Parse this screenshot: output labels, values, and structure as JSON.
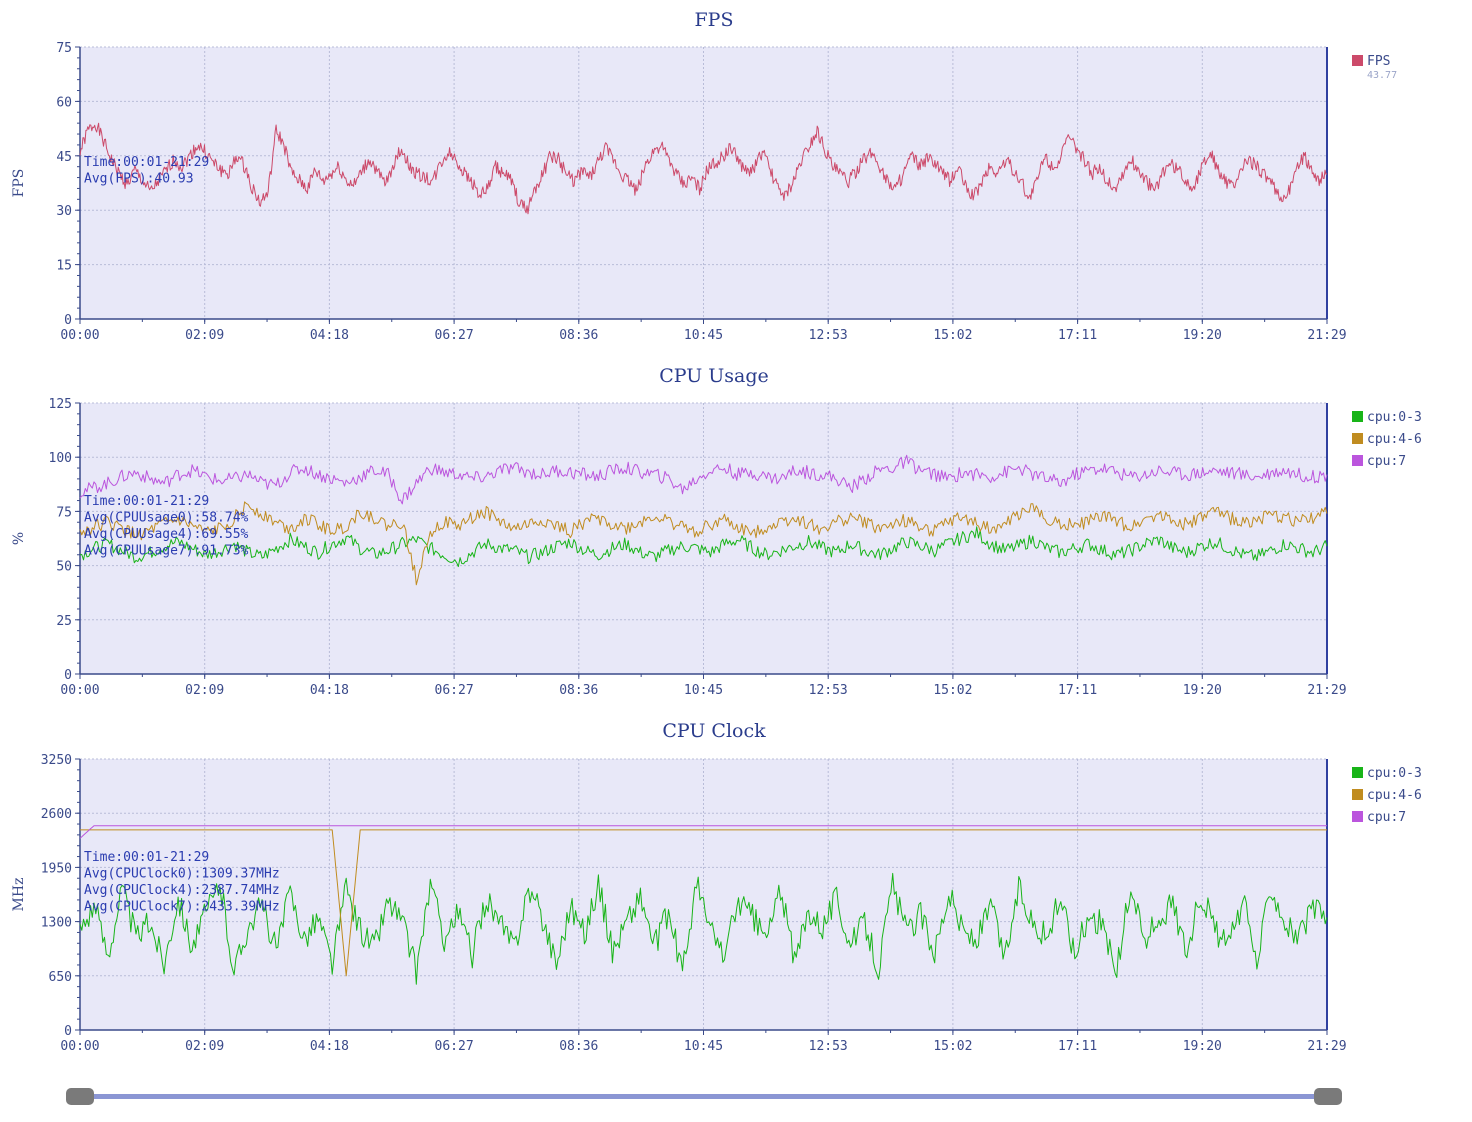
{
  "x_ticks": [
    "00:00",
    "02:09",
    "04:18",
    "06:27",
    "08:36",
    "10:45",
    "12:53",
    "15:02",
    "17:11",
    "19:20",
    "21:29"
  ],
  "chart_data": [
    {
      "type": "line",
      "title": "FPS",
      "ylabel": "FPS",
      "ylim": [
        0,
        75
      ],
      "yticks": [
        "0",
        "15",
        "30",
        "45",
        "60",
        "75"
      ],
      "x_range": [
        "00:00",
        "21:29"
      ],
      "grid": true,
      "legend_position": "right",
      "legend": [
        {
          "name": "FPS",
          "color": "#cc4a6a",
          "value": "43.77"
        }
      ],
      "annotation": [
        "Time:00:01-21:29",
        "Avg(FPS):40.93"
      ],
      "series": [
        {
          "name": "FPS",
          "color": "#cc4a6a",
          "values": [
            46,
            52,
            54,
            49,
            44,
            40,
            37,
            41,
            38,
            35,
            38,
            41,
            44,
            42,
            45,
            48,
            46,
            43,
            41,
            40,
            45,
            42,
            36,
            32,
            35,
            52,
            48,
            40,
            38,
            36,
            41,
            38,
            40,
            42,
            38,
            37,
            41,
            44,
            40,
            37,
            43,
            47,
            42,
            40,
            39,
            38,
            43,
            46,
            44,
            40,
            38,
            34,
            36,
            42,
            40,
            38,
            32,
            30,
            36,
            40,
            45,
            44,
            40,
            38,
            41,
            39,
            43,
            47,
            44,
            40,
            38,
            35,
            42,
            46,
            48,
            44,
            40,
            37,
            39,
            36,
            41,
            43,
            45,
            47,
            44,
            40,
            42,
            46,
            41,
            36,
            34,
            38,
            44,
            48,
            52,
            47,
            42,
            40,
            38,
            41,
            44,
            46,
            42,
            38,
            36,
            40,
            45,
            42,
            44,
            43,
            40,
            38,
            42,
            36,
            34,
            38,
            42,
            40,
            44,
            41,
            38,
            33,
            38,
            45,
            42,
            44,
            50,
            47,
            44,
            40,
            42,
            38,
            36,
            40,
            44,
            41,
            38,
            35,
            40,
            43,
            41,
            38,
            36,
            42,
            46,
            42,
            38,
            36,
            41,
            44,
            42,
            40,
            37,
            33,
            35,
            40,
            45,
            42,
            38,
            40
          ]
        }
      ]
    },
    {
      "type": "line",
      "title": "CPU Usage",
      "ylabel": "%",
      "ylim": [
        0,
        125
      ],
      "yticks": [
        "0",
        "25",
        "50",
        "75",
        "100",
        "125"
      ],
      "x_range": [
        "00:00",
        "21:29"
      ],
      "grid": true,
      "legend_position": "right",
      "legend": [
        {
          "name": "cpu:0-3",
          "color": "#18b418"
        },
        {
          "name": "cpu:4-6",
          "color": "#c08c20"
        },
        {
          "name": "cpu:7",
          "color": "#bb55dd"
        }
      ],
      "annotation": [
        "Time:00:01-21:29",
        "Avg(CPUUsage0):58.74%",
        "Avg(CPUUsage4):69.55%",
        "Avg(CPUUsage7):91.73%"
      ],
      "series": [
        {
          "name": "cpu:0-3",
          "color": "#18b418",
          "values": [
            55,
            58,
            60,
            57,
            54,
            56,
            59,
            61,
            58,
            55,
            57,
            60,
            56,
            54,
            58,
            62,
            59,
            56,
            60,
            63,
            58,
            55,
            57,
            60,
            62,
            58,
            55,
            52,
            56,
            60,
            58,
            57,
            54,
            56,
            59,
            61,
            57,
            55,
            58,
            60,
            56,
            54,
            57,
            59,
            58,
            56,
            60,
            62,
            58,
            55,
            57,
            59,
            61,
            58,
            56,
            60,
            57,
            55,
            58,
            61,
            59,
            57,
            60,
            63,
            65,
            60,
            57,
            59,
            62,
            58,
            56,
            58,
            60,
            57,
            55,
            57,
            60,
            62,
            58,
            56,
            59,
            61,
            58,
            55,
            54,
            57,
            60,
            58,
            56,
            59
          ]
        },
        {
          "name": "cpu:4-6",
          "color": "#c08c20",
          "values": [
            65,
            68,
            70,
            67,
            64,
            66,
            69,
            71,
            68,
            65,
            67,
            72,
            78,
            74,
            70,
            67,
            72,
            69,
            66,
            68,
            75,
            72,
            68,
            70,
            44,
            66,
            70,
            68,
            72,
            75,
            70,
            67,
            69,
            71,
            68,
            66,
            70,
            72,
            69,
            67,
            70,
            73,
            70,
            68,
            66,
            69,
            71,
            67,
            65,
            68,
            70,
            72,
            69,
            67,
            70,
            72,
            70,
            67,
            69,
            71,
            68,
            66,
            70,
            72,
            69,
            67,
            69,
            74,
            76,
            72,
            70,
            68,
            71,
            73,
            70,
            68,
            72,
            74,
            71,
            69,
            72,
            75,
            72,
            70,
            71,
            73,
            72,
            70,
            72,
            74
          ]
        },
        {
          "name": "cpu:7",
          "color": "#bb55dd",
          "values": [
            84,
            86,
            88,
            91,
            93,
            90,
            88,
            92,
            94,
            91,
            89,
            90,
            92,
            88,
            87,
            93,
            95,
            92,
            90,
            88,
            91,
            94,
            92,
            80,
            88,
            95,
            93,
            92,
            90,
            91,
            94,
            95,
            93,
            92,
            94,
            93,
            92,
            91,
            94,
            95,
            93,
            92,
            90,
            85,
            90,
            94,
            95,
            92,
            93,
            91,
            90,
            94,
            93,
            92,
            90,
            86,
            90,
            94,
            95,
            98,
            94,
            92,
            90,
            93,
            92,
            91,
            93,
            95,
            92,
            90,
            88,
            92,
            94,
            95,
            93,
            91,
            92,
            94,
            93,
            92,
            93,
            94,
            93,
            92,
            91,
            93,
            94,
            92,
            91,
            92
          ]
        }
      ]
    },
    {
      "type": "line",
      "title": "CPU Clock",
      "ylabel": "MHz",
      "ylim": [
        0,
        3250
      ],
      "yticks": [
        "0",
        "650",
        "1300",
        "1950",
        "2600",
        "3250"
      ],
      "x_range": [
        "00:00",
        "21:29"
      ],
      "grid": true,
      "legend_position": "right",
      "legend": [
        {
          "name": "cpu:0-3",
          "color": "#18b418"
        },
        {
          "name": "cpu:4-6",
          "color": "#c08c20"
        },
        {
          "name": "cpu:7",
          "color": "#bb55dd"
        }
      ],
      "annotation": [
        "Time:00:01-21:29",
        "Avg(CPUClock0):1309.37MHz",
        "Avg(CPUClock4):2387.74MHz",
        "Avg(CPUClock7):2433.39MHz"
      ],
      "series": [
        {
          "name": "cpu:0-3",
          "color": "#18b418",
          "values": [
            1200,
            1500,
            900,
            1700,
            1100,
            1300,
            800,
            1600,
            1000,
            1400,
            1750,
            700,
            1250,
            1500,
            950,
            1650,
            1100,
            1350,
            800,
            1700,
            1200,
            1000,
            1550,
            1300,
            700,
            1750,
            1100,
            1400,
            900,
            1600,
            1250,
            1000,
            1700,
            1350,
            800,
            1500,
            1150,
            1750,
            950,
            1300,
            1600,
            1000,
            1400,
            700,
            1750,
            1200,
            900,
            1550,
            1350,
            1100,
            1700,
            800,
            1450,
            1250,
            1600,
            1000,
            1300,
            750,
            1750,
            1150,
            1400,
            950,
            1650,
            1200,
            1050,
            1500,
            850,
            1700,
            1300,
            1100,
            1600,
            900,
            1400,
            1250,
            700,
            1750,
            1050,
            1350,
            1500,
            950,
            1650,
            1200,
            1000,
            1550,
            800,
            1750,
            1300,
            1100,
            1450,
            1350
          ]
        },
        {
          "name": "cpu:4-6",
          "color": "#c08c20",
          "values": [
            2400,
            2400,
            2400,
            2400,
            2400,
            2400,
            2400,
            2400,
            2400,
            2400,
            2400,
            2400,
            2400,
            2400,
            2400,
            2400,
            2400,
            2400,
            2400,
            650,
            2400,
            2400,
            2400,
            2400,
            2400,
            2400,
            2400,
            2400,
            2400,
            2400,
            2400,
            2400,
            2400,
            2400,
            2400,
            2400,
            2400,
            2400,
            2400,
            2400,
            2400,
            2400,
            2400,
            2400,
            2400,
            2400,
            2400,
            2400,
            2400,
            2400,
            2400,
            2400,
            2400,
            2400,
            2400,
            2400,
            2400,
            2400,
            2400,
            2400,
            2400,
            2400,
            2400,
            2400,
            2400,
            2400,
            2400,
            2400,
            2400,
            2400,
            2400,
            2400,
            2400,
            2400,
            2400,
            2400,
            2400,
            2400,
            2400,
            2400,
            2400,
            2400,
            2400,
            2400,
            2400,
            2400,
            2400,
            2400,
            2400,
            2400
          ]
        },
        {
          "name": "cpu:7",
          "color": "#bb55dd",
          "values": [
            2300,
            2450,
            2450,
            2450,
            2450,
            2450,
            2450,
            2450,
            2450,
            2450,
            2450,
            2450,
            2450,
            2450,
            2450,
            2450,
            2450,
            2450,
            2450,
            2450,
            2450,
            2450,
            2450,
            2450,
            2450,
            2450,
            2450,
            2450,
            2450,
            2450,
            2450,
            2450,
            2450,
            2450,
            2450,
            2450,
            2450,
            2450,
            2450,
            2450,
            2450,
            2450,
            2450,
            2450,
            2450,
            2450,
            2450,
            2450,
            2450,
            2450,
            2450,
            2450,
            2450,
            2450,
            2450,
            2450,
            2450,
            2450,
            2450,
            2450,
            2450,
            2450,
            2450,
            2450,
            2450,
            2450,
            2450,
            2450,
            2450,
            2450,
            2450,
            2450,
            2450,
            2450,
            2450,
            2450,
            2450,
            2450,
            2450,
            2450,
            2450,
            2450,
            2450,
            2450,
            2450,
            2450,
            2450,
            2450,
            2450,
            2450
          ]
        }
      ]
    }
  ],
  "slider": {
    "range": [
      "00:00",
      "21:29"
    ],
    "start_fraction": 0,
    "end_fraction": 1
  }
}
